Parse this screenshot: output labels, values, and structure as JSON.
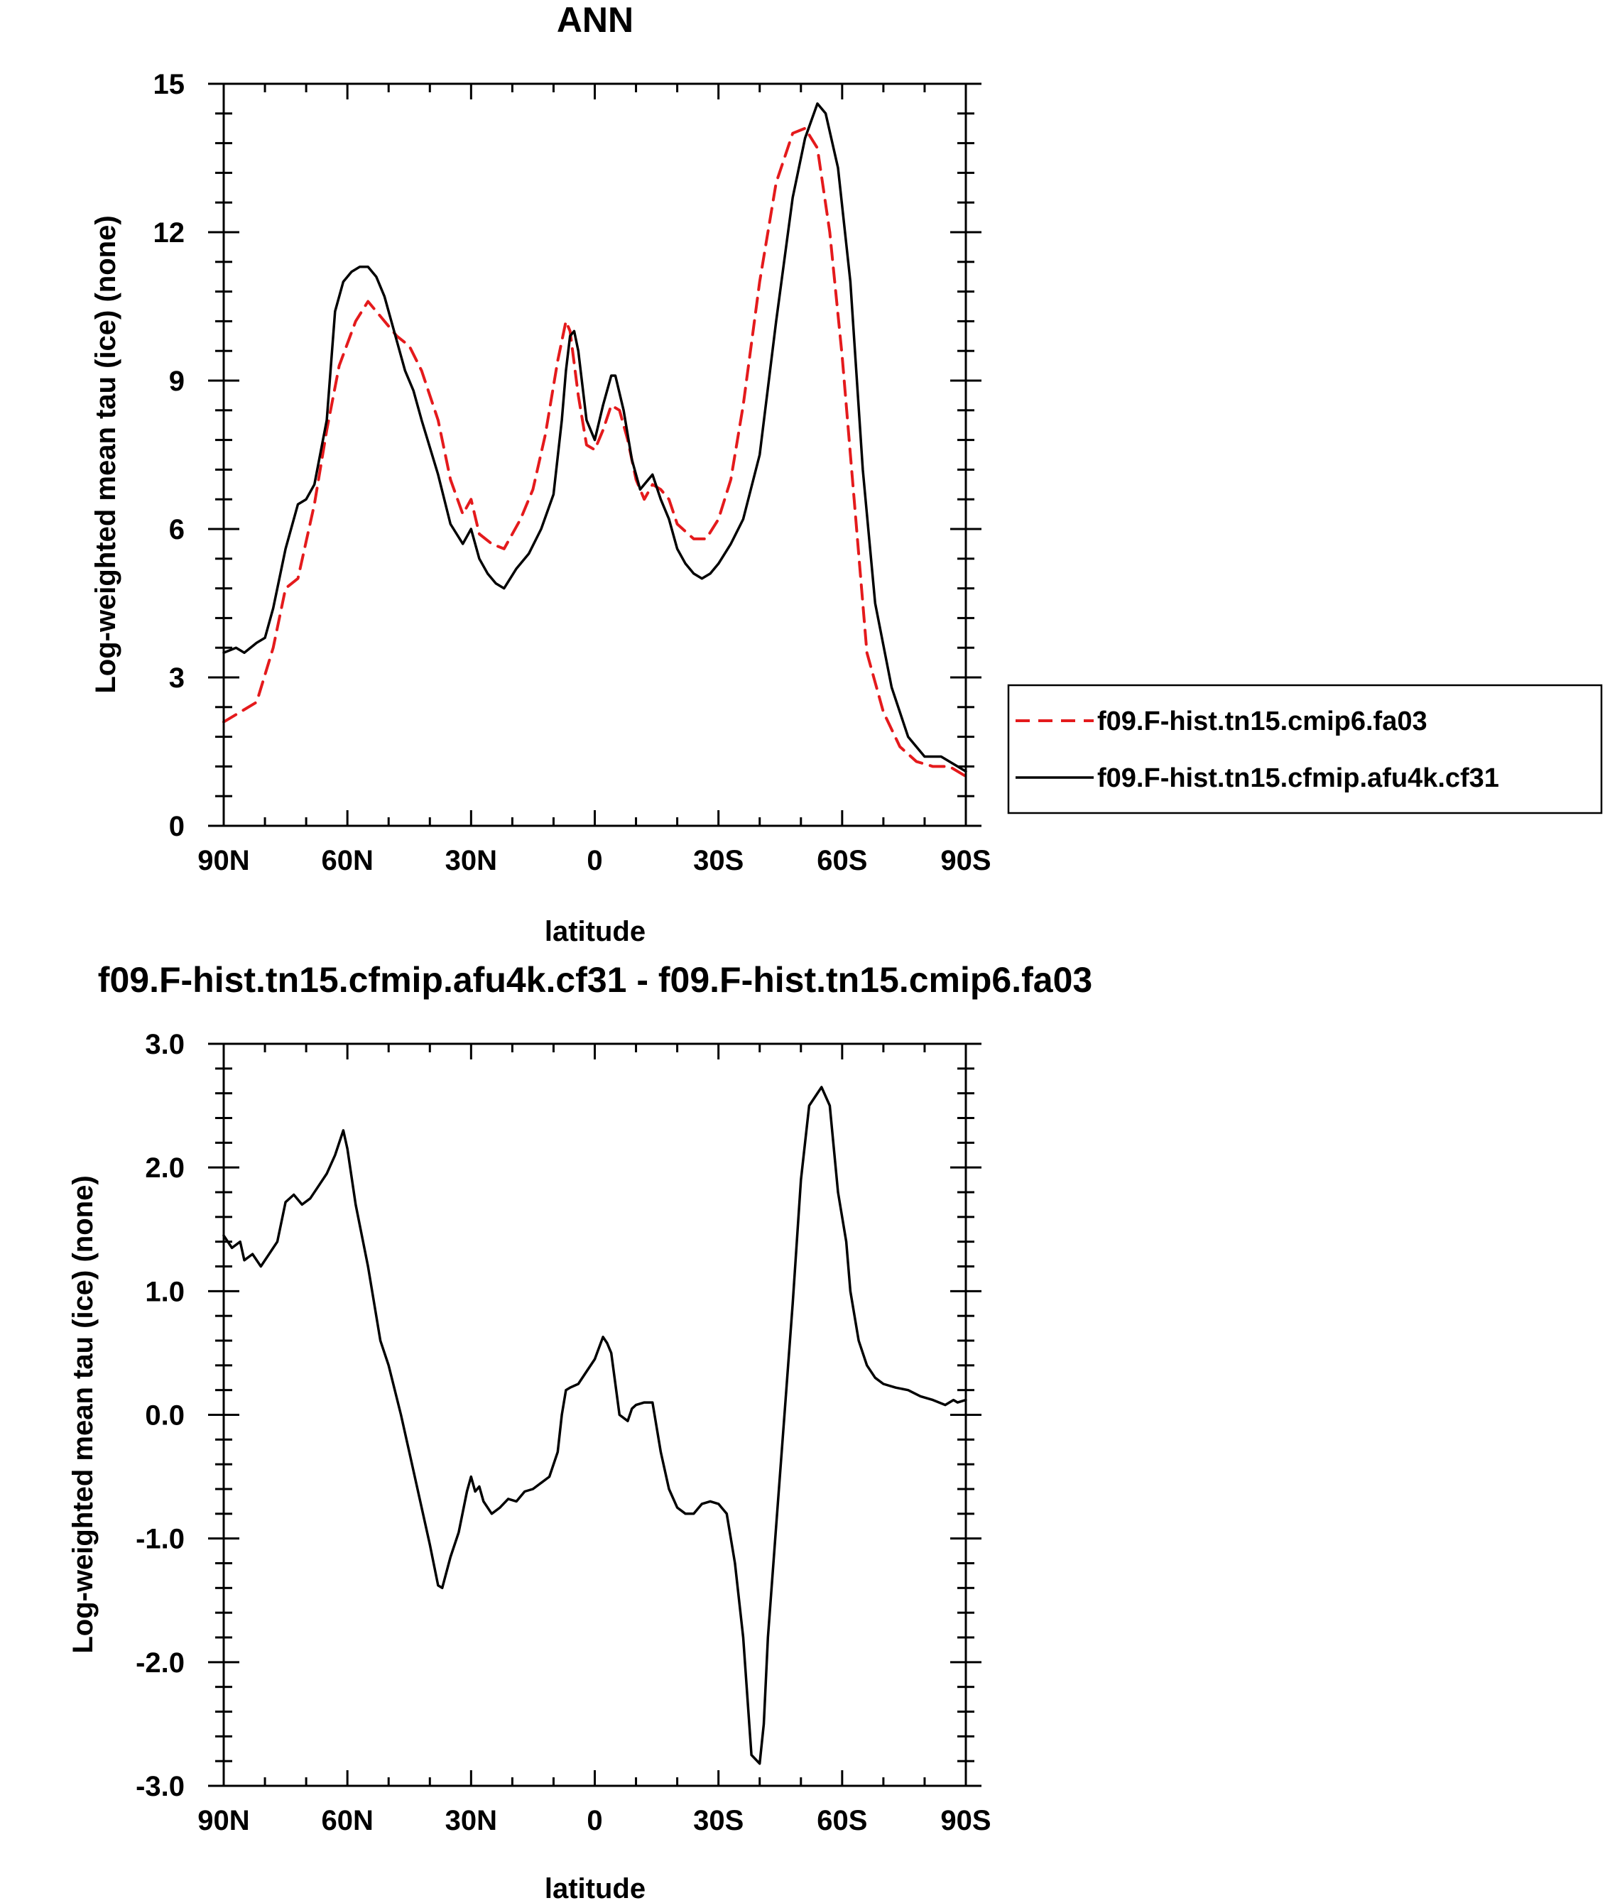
{
  "chart_data": [
    {
      "type": "line",
      "title": "ANN",
      "xlabel": "latitude",
      "ylabel": "Log-weighted mean tau (ice) (none)",
      "xlim": [
        90,
        -90
      ],
      "ylim": [
        0,
        15
      ],
      "xticks": [
        90,
        60,
        30,
        0,
        -30,
        -60,
        -90
      ],
      "xtick_labels": [
        "90N",
        "60N",
        "30N",
        "0",
        "30S",
        "60S",
        "90S"
      ],
      "yticks": [
        0,
        3,
        6,
        9,
        12,
        15
      ],
      "ytick_labels": [
        "0",
        "3",
        "6",
        "9",
        "12",
        "15"
      ],
      "grid": false,
      "legend_position": "right",
      "series": [
        {
          "name": "f09.F-hist.tn15.cmip6.fa03",
          "color": "#e41a1c",
          "dash": "dashed",
          "x": [
            90,
            86,
            82,
            78,
            75,
            72,
            68,
            65,
            62,
            58,
            55,
            52,
            48,
            45,
            42,
            38,
            35,
            32,
            30,
            28,
            25,
            22,
            18,
            15,
            12,
            9,
            7,
            6,
            4,
            2,
            0,
            -2,
            -4,
            -6,
            -8,
            -10,
            -12,
            -14,
            -16,
            -18,
            -20,
            -24,
            -27,
            -30,
            -33,
            -36,
            -40,
            -44,
            -48,
            -51,
            -54,
            -57,
            -60,
            -63,
            -66,
            -70,
            -74,
            -78,
            -82,
            -86,
            -90
          ],
          "y": [
            2.1,
            2.3,
            2.5,
            3.6,
            4.8,
            5.0,
            6.5,
            8.0,
            9.3,
            10.2,
            10.6,
            10.3,
            9.9,
            9.7,
            9.2,
            8.2,
            7.0,
            6.3,
            6.6,
            5.9,
            5.7,
            5.6,
            6.2,
            6.8,
            7.9,
            9.4,
            10.2,
            10.0,
            8.7,
            7.7,
            7.6,
            8.0,
            8.5,
            8.4,
            7.8,
            7.0,
            6.6,
            6.9,
            6.8,
            6.6,
            6.1,
            5.8,
            5.8,
            6.2,
            7.0,
            8.5,
            11.0,
            13.0,
            14.0,
            14.1,
            13.7,
            12.0,
            9.5,
            6.5,
            3.5,
            2.3,
            1.6,
            1.3,
            1.2,
            1.2,
            1.0
          ]
        },
        {
          "name": "f09.F-hist.tn15.cfmip.afu4k.cf31",
          "color": "#000000",
          "dash": "solid",
          "x": [
            90,
            87,
            85,
            82,
            80,
            78,
            75,
            72,
            70,
            68,
            65,
            63,
            61,
            59,
            57,
            55,
            53,
            51,
            48,
            46,
            44,
            42,
            38,
            35,
            32,
            30,
            28,
            26,
            24,
            22,
            19,
            16,
            13,
            10,
            8,
            7,
            6,
            5,
            4,
            2,
            0,
            -2,
            -4,
            -5,
            -7,
            -9,
            -11,
            -13,
            -14,
            -16,
            -18,
            -20,
            -22,
            -24,
            -26,
            -28,
            -30,
            -33,
            -36,
            -40,
            -44,
            -48,
            -51,
            -54,
            -56,
            -59,
            -62,
            -65,
            -68,
            -72,
            -76,
            -80,
            -84,
            -88,
            -90
          ],
          "y": [
            3.5,
            3.6,
            3.5,
            3.7,
            3.8,
            4.4,
            5.6,
            6.5,
            6.6,
            6.9,
            8.2,
            10.4,
            11.0,
            11.2,
            11.3,
            11.3,
            11.1,
            10.7,
            9.8,
            9.2,
            8.8,
            8.2,
            7.1,
            6.1,
            5.7,
            6.0,
            5.4,
            5.1,
            4.9,
            4.8,
            5.2,
            5.5,
            6.0,
            6.7,
            8.2,
            9.2,
            9.9,
            10.0,
            9.6,
            8.2,
            7.8,
            8.5,
            9.1,
            9.1,
            8.4,
            7.4,
            6.8,
            7.0,
            7.1,
            6.6,
            6.2,
            5.6,
            5.3,
            5.1,
            5.0,
            5.1,
            5.3,
            5.7,
            6.2,
            7.5,
            10.2,
            12.7,
            13.9,
            14.6,
            14.4,
            13.3,
            11.0,
            7.2,
            4.5,
            2.8,
            1.8,
            1.4,
            1.4,
            1.2,
            1.1
          ]
        }
      ]
    },
    {
      "type": "line",
      "title": "f09.F-hist.tn15.cfmip.afu4k.cf31 - f09.F-hist.tn15.cmip6.fa03",
      "xlabel": "latitude",
      "ylabel": "Log-weighted mean tau (ice) (none)",
      "xlim": [
        90,
        -90
      ],
      "ylim": [
        -3.0,
        3.0
      ],
      "xticks": [
        90,
        60,
        30,
        0,
        -30,
        -60,
        -90
      ],
      "xtick_labels": [
        "90N",
        "60N",
        "30N",
        "0",
        "30S",
        "60S",
        "90S"
      ],
      "yticks": [
        -3.0,
        -2.0,
        -1.0,
        0.0,
        1.0,
        2.0,
        3.0
      ],
      "ytick_labels": [
        "-3.0",
        "-2.0",
        "-1.0",
        "0.0",
        "1.0",
        "2.0",
        "3.0"
      ],
      "grid": false,
      "series": [
        {
          "color": "#000000",
          "dash": "solid",
          "x": [
            90,
            88,
            86,
            85,
            83,
            81,
            79,
            77,
            75,
            73,
            71,
            69,
            67,
            65,
            63,
            61,
            60,
            58,
            55,
            52,
            50,
            47,
            45,
            42,
            40,
            38,
            37,
            35,
            33,
            31,
            30,
            29,
            28,
            27,
            25,
            23,
            21,
            19,
            17,
            15,
            13,
            11,
            9,
            8,
            7,
            6,
            4,
            2,
            0,
            -2,
            -3,
            -4,
            -6,
            -8,
            -9,
            -10,
            -12,
            -14,
            -16,
            -18,
            -20,
            -22,
            -24,
            -26,
            -28,
            -30,
            -32,
            -34,
            -36,
            -38,
            -40,
            -41,
            -42,
            -44,
            -46,
            -48,
            -50,
            -52,
            -55,
            -57,
            -59,
            -61,
            -62,
            -64,
            -66,
            -68,
            -70,
            -73,
            -76,
            -79,
            -82,
            -85,
            -87,
            -88,
            -90
          ],
          "y": [
            1.45,
            1.35,
            1.4,
            1.25,
            1.3,
            1.2,
            1.3,
            1.4,
            1.72,
            1.78,
            1.7,
            1.75,
            1.85,
            1.95,
            2.1,
            2.3,
            2.15,
            1.7,
            1.2,
            0.6,
            0.4,
            0.0,
            -0.3,
            -0.75,
            -1.05,
            -1.38,
            -1.4,
            -1.15,
            -0.95,
            -0.62,
            -0.5,
            -0.62,
            -0.58,
            -0.7,
            -0.8,
            -0.75,
            -0.68,
            -0.7,
            -0.62,
            -0.6,
            -0.55,
            -0.5,
            -0.3,
            0.0,
            0.2,
            0.22,
            0.25,
            0.35,
            0.45,
            0.63,
            0.58,
            0.5,
            0.0,
            -0.05,
            0.05,
            0.08,
            0.1,
            0.1,
            -0.3,
            -0.6,
            -0.75,
            -0.8,
            -0.8,
            -0.72,
            -0.7,
            -0.72,
            -0.8,
            -1.2,
            -1.8,
            -2.75,
            -2.82,
            -2.5,
            -1.8,
            -0.9,
            0.0,
            0.9,
            1.9,
            2.5,
            2.65,
            2.5,
            1.8,
            1.4,
            1.0,
            0.6,
            0.4,
            0.3,
            0.25,
            0.22,
            0.2,
            0.15,
            0.12,
            0.08,
            0.12,
            0.1,
            0.12
          ]
        }
      ]
    }
  ]
}
